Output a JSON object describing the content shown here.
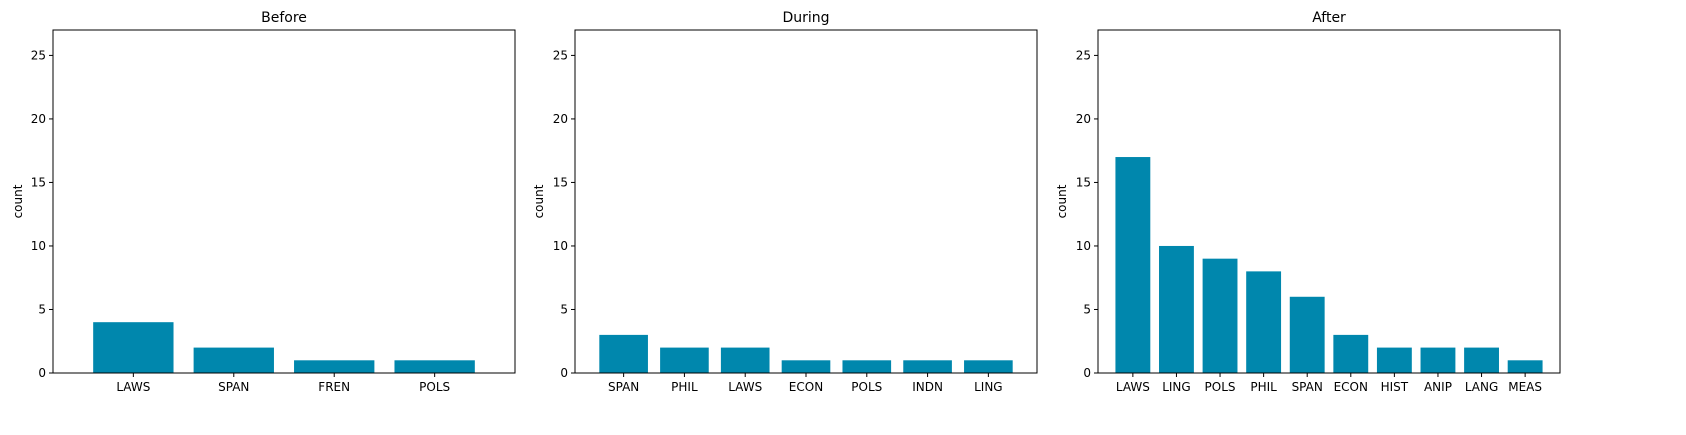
{
  "bar_color": "#0087ad",
  "chart_data": [
    {
      "type": "bar",
      "title": "Before",
      "xlabel": "",
      "ylabel": "count",
      "ylim": [
        0,
        27
      ],
      "yticks": [
        0,
        5,
        10,
        15,
        20,
        25
      ],
      "categories": [
        "LAWS",
        "SPAN",
        "FREN",
        "POLS"
      ],
      "values": [
        4,
        2,
        1,
        1
      ]
    },
    {
      "type": "bar",
      "title": "During",
      "xlabel": "",
      "ylabel": "count",
      "ylim": [
        0,
        27
      ],
      "yticks": [
        0,
        5,
        10,
        15,
        20,
        25
      ],
      "categories": [
        "SPAN",
        "PHIL",
        "LAWS",
        "ECON",
        "POLS",
        "INDN",
        "LING"
      ],
      "values": [
        3,
        2,
        2,
        1,
        1,
        1,
        1
      ]
    },
    {
      "type": "bar",
      "title": "After",
      "xlabel": "",
      "ylabel": "count",
      "ylim": [
        0,
        27
      ],
      "yticks": [
        0,
        5,
        10,
        15,
        20,
        25
      ],
      "categories": [
        "LAWS",
        "LING",
        "POLS",
        "PHIL",
        "SPAN",
        "ECON",
        "HIST",
        "ANIP",
        "LANG",
        "MEAS"
      ],
      "values": [
        17,
        10,
        9,
        8,
        6,
        3,
        2,
        2,
        2,
        1
      ]
    }
  ]
}
